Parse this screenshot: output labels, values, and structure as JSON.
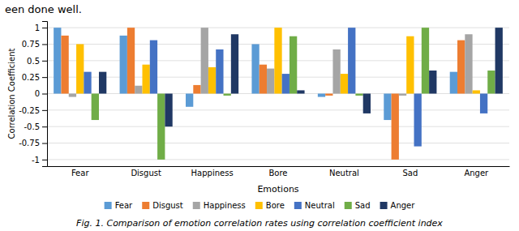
{
  "chart_data": {
    "type": "bar",
    "annotations": [
      "een done well.",
      "Fig. 1. Comparison of emotion correlation rates using correlation coefficient index"
    ],
    "x_label": "Emotions",
    "y_label": "Correlation Coefficient",
    "categories": [
      "Fear",
      "Disgust",
      "Happiness",
      "Bore",
      "Neutral",
      "Sad",
      "Anger"
    ],
    "series": [
      {
        "name": "Fear",
        "color": "#5B9BD5",
        "values": [
          1.0,
          0.88,
          -0.2,
          0.75,
          -0.05,
          -0.4,
          0.33
        ]
      },
      {
        "name": "Disgust",
        "color": "#ED7D31",
        "values": [
          0.88,
          1.0,
          0.13,
          0.44,
          -0.03,
          -1.0,
          0.81
        ]
      },
      {
        "name": "Happiness",
        "color": "#A5A5A5",
        "values": [
          -0.05,
          0.12,
          1.0,
          0.38,
          0.67,
          -0.03,
          0.9
        ]
      },
      {
        "name": "Bore",
        "color": "#FFC000",
        "values": [
          0.75,
          0.44,
          0.4,
          1.0,
          0.3,
          0.87,
          0.05
        ]
      },
      {
        "name": "Neutral",
        "color": "#4472C4",
        "values": [
          0.33,
          0.81,
          0.67,
          0.3,
          1.0,
          -0.8,
          -0.3
        ]
      },
      {
        "name": "Sad",
        "color": "#70AD47",
        "values": [
          -0.4,
          -1.0,
          -0.03,
          0.87,
          -0.03,
          1.0,
          0.35
        ]
      },
      {
        "name": "Anger",
        "color": "#203864",
        "values": [
          0.33,
          -0.5,
          0.9,
          0.05,
          -0.3,
          0.35,
          1.0
        ]
      }
    ],
    "ylim": [
      -1.1,
      1.1
    ],
    "yticks": [
      -1,
      -0.75,
      -0.5,
      -0.25,
      0,
      0.25,
      0.5,
      0.75,
      1
    ],
    "grid": true,
    "legend": "bottom"
  }
}
